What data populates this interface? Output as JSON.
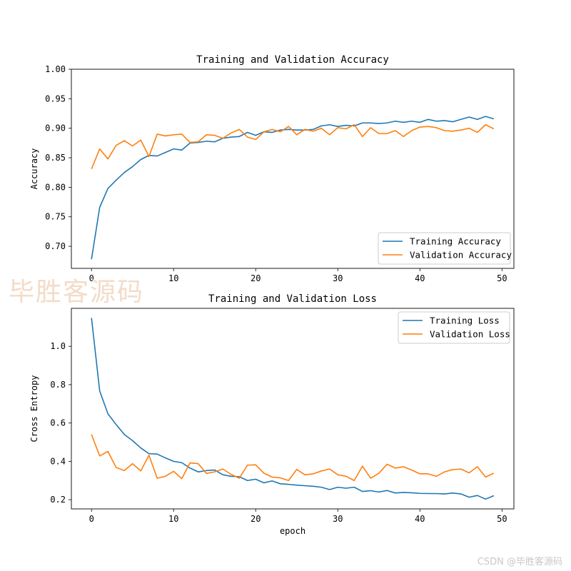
{
  "watermark": "毕胜客源码",
  "credit": "CSDN @毕胜客源码",
  "colors": {
    "training": "#1f77b4",
    "validation": "#ff7f0e"
  },
  "chart_data": [
    {
      "type": "line",
      "title": "Training and Validation Accuracy",
      "xlabel": "",
      "ylabel": "Accuracy",
      "xlim": [
        -2.45,
        51.45
      ],
      "ylim": [
        0.6626,
        1.0
      ],
      "xticks": [
        0,
        10,
        20,
        30,
        40,
        50
      ],
      "yticks": [
        0.7,
        0.75,
        0.8,
        0.85,
        0.9,
        0.95,
        1.0
      ],
      "ytick_labels": [
        "0.70",
        "0.75",
        "0.80",
        "0.85",
        "0.90",
        "0.95",
        "1.00"
      ],
      "legend_position": "lower right",
      "grid": false,
      "series": [
        {
          "name": "Training Accuracy",
          "color": "#1f77b4",
          "x": [
            0,
            1,
            2,
            3,
            4,
            5,
            6,
            7,
            8,
            9,
            10,
            11,
            12,
            13,
            14,
            15,
            16,
            17,
            18,
            19,
            20,
            21,
            22,
            23,
            24,
            25,
            26,
            27,
            28,
            29,
            30,
            31,
            32,
            33,
            34,
            35,
            36,
            37,
            38,
            39,
            40,
            41,
            42,
            43,
            44,
            45,
            46,
            47,
            48,
            49
          ],
          "y": [
            0.678,
            0.766,
            0.798,
            0.812,
            0.825,
            0.835,
            0.847,
            0.854,
            0.853,
            0.859,
            0.865,
            0.863,
            0.875,
            0.876,
            0.878,
            0.877,
            0.883,
            0.885,
            0.886,
            0.893,
            0.888,
            0.894,
            0.893,
            0.897,
            0.898,
            0.897,
            0.897,
            0.898,
            0.904,
            0.906,
            0.903,
            0.905,
            0.904,
            0.909,
            0.909,
            0.908,
            0.909,
            0.912,
            0.91,
            0.912,
            0.91,
            0.915,
            0.912,
            0.913,
            0.911,
            0.915,
            0.919,
            0.915,
            0.92,
            0.916
          ]
        },
        {
          "name": "Validation Accuracy",
          "color": "#ff7f0e",
          "x": [
            0,
            1,
            2,
            3,
            4,
            5,
            6,
            7,
            8,
            9,
            10,
            11,
            12,
            13,
            14,
            15,
            16,
            17,
            18,
            19,
            20,
            21,
            22,
            23,
            24,
            25,
            26,
            27,
            28,
            29,
            30,
            31,
            32,
            33,
            34,
            35,
            36,
            37,
            38,
            39,
            40,
            41,
            42,
            43,
            44,
            45,
            46,
            47,
            48,
            49
          ],
          "y": [
            0.831,
            0.865,
            0.848,
            0.871,
            0.879,
            0.87,
            0.88,
            0.852,
            0.89,
            0.887,
            0.889,
            0.89,
            0.876,
            0.877,
            0.889,
            0.888,
            0.883,
            0.892,
            0.898,
            0.885,
            0.881,
            0.894,
            0.898,
            0.894,
            0.903,
            0.889,
            0.898,
            0.895,
            0.9,
            0.889,
            0.901,
            0.899,
            0.906,
            0.886,
            0.901,
            0.891,
            0.891,
            0.896,
            0.886,
            0.896,
            0.902,
            0.903,
            0.901,
            0.896,
            0.895,
            0.897,
            0.9,
            0.893,
            0.906,
            0.899
          ]
        }
      ]
    },
    {
      "type": "line",
      "title": "Training and Validation Loss",
      "xlabel": "epoch",
      "ylabel": "Cross Entropy",
      "xlim": [
        -2.45,
        51.45
      ],
      "ylim": [
        0.152,
        1.198
      ],
      "xticks": [
        0,
        10,
        20,
        30,
        40,
        50
      ],
      "yticks": [
        0.2,
        0.4,
        0.6,
        0.8,
        1.0
      ],
      "ytick_labels": [
        "0.2",
        "0.4",
        "0.6",
        "0.8",
        "1.0"
      ],
      "legend_position": "upper right",
      "grid": false,
      "series": [
        {
          "name": "Training Loss",
          "color": "#1f77b4",
          "x": [
            0,
            1,
            2,
            3,
            4,
            5,
            6,
            7,
            8,
            9,
            10,
            11,
            12,
            13,
            14,
            15,
            16,
            17,
            18,
            19,
            20,
            21,
            22,
            23,
            24,
            25,
            26,
            27,
            28,
            29,
            30,
            31,
            32,
            33,
            34,
            35,
            36,
            37,
            38,
            39,
            40,
            41,
            42,
            43,
            44,
            45,
            46,
            47,
            48,
            49
          ],
          "y": [
            1.148,
            0.767,
            0.648,
            0.592,
            0.54,
            0.508,
            0.47,
            0.44,
            0.438,
            0.418,
            0.4,
            0.393,
            0.365,
            0.345,
            0.352,
            0.355,
            0.33,
            0.322,
            0.32,
            0.3,
            0.307,
            0.288,
            0.298,
            0.283,
            0.28,
            0.276,
            0.273,
            0.27,
            0.265,
            0.253,
            0.265,
            0.26,
            0.265,
            0.243,
            0.247,
            0.24,
            0.248,
            0.235,
            0.238,
            0.236,
            0.233,
            0.232,
            0.232,
            0.23,
            0.235,
            0.23,
            0.213,
            0.222,
            0.203,
            0.221
          ]
        },
        {
          "name": "Validation Loss",
          "color": "#ff7f0e",
          "x": [
            0,
            1,
            2,
            3,
            4,
            5,
            6,
            7,
            8,
            9,
            10,
            11,
            12,
            13,
            14,
            15,
            16,
            17,
            18,
            19,
            20,
            21,
            22,
            23,
            24,
            25,
            26,
            27,
            28,
            29,
            30,
            31,
            32,
            33,
            34,
            35,
            36,
            37,
            38,
            39,
            40,
            41,
            42,
            43,
            44,
            45,
            46,
            47,
            48,
            49
          ],
          "y": [
            0.54,
            0.428,
            0.452,
            0.368,
            0.352,
            0.388,
            0.35,
            0.432,
            0.312,
            0.322,
            0.348,
            0.31,
            0.392,
            0.388,
            0.337,
            0.345,
            0.36,
            0.332,
            0.312,
            0.38,
            0.382,
            0.338,
            0.318,
            0.314,
            0.3,
            0.358,
            0.33,
            0.335,
            0.35,
            0.36,
            0.33,
            0.322,
            0.3,
            0.375,
            0.312,
            0.338,
            0.385,
            0.365,
            0.372,
            0.355,
            0.335,
            0.335,
            0.322,
            0.345,
            0.357,
            0.36,
            0.34,
            0.372,
            0.318,
            0.338
          ]
        }
      ]
    }
  ]
}
